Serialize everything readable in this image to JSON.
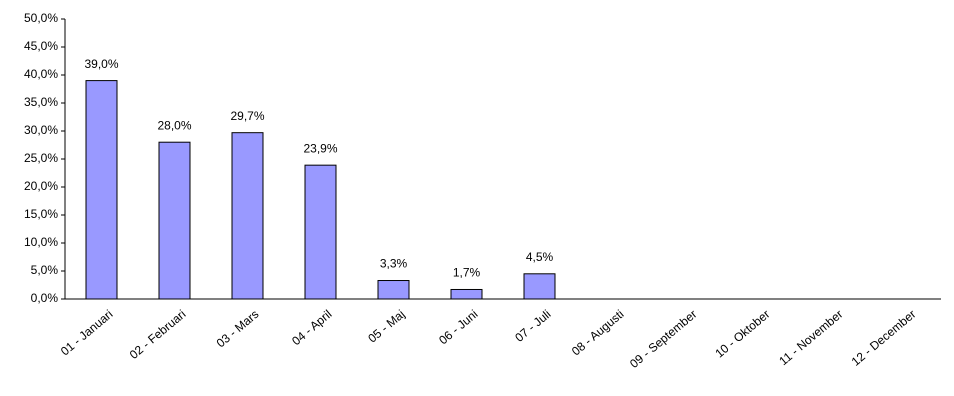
{
  "chart_data": {
    "type": "bar",
    "categories": [
      "01 - Januari",
      "02 - Februari",
      "03 - Mars",
      "04 - April",
      "05 - Maj",
      "06 - Juni",
      "07 - Juli",
      "08 - Augusti",
      "09 - September",
      "10 - Oktober",
      "11 - November",
      "12 - December"
    ],
    "values": [
      39.0,
      28.0,
      29.7,
      23.9,
      3.3,
      1.7,
      4.5,
      null,
      null,
      null,
      null,
      null
    ],
    "value_labels": [
      "39,0%",
      "28,0%",
      "29,7%",
      "23,9%",
      "3,3%",
      "1,7%",
      "4,5%",
      null,
      null,
      null,
      null,
      null
    ],
    "color": "#9999ff",
    "ylim": [
      0,
      50
    ],
    "yticks": [
      {
        "value": 0,
        "label": "0,0%"
      },
      {
        "value": 5,
        "label": "5,0%"
      },
      {
        "value": 10,
        "label": "10,0%"
      },
      {
        "value": 15,
        "label": "15,0%"
      },
      {
        "value": 20,
        "label": "20,0%"
      },
      {
        "value": 25,
        "label": "25,0%"
      },
      {
        "value": 30,
        "label": "30,0%"
      },
      {
        "value": 35,
        "label": "35,0%"
      },
      {
        "value": 40,
        "label": "40,0%"
      },
      {
        "value": 45,
        "label": "45,0%"
      },
      {
        "value": 50,
        "label": "50,0%"
      }
    ],
    "grid": false
  }
}
